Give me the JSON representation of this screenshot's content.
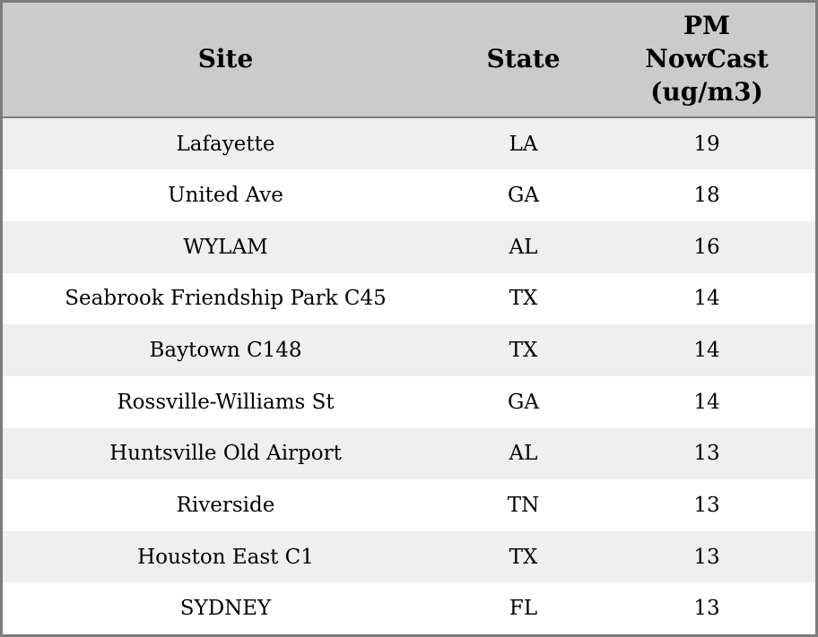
{
  "chart_data": {
    "type": "table",
    "columns": [
      "Site",
      "State",
      "PM NowCast (ug/m3)"
    ],
    "rows": [
      [
        "Lafayette",
        "LA",
        "19"
      ],
      [
        "United Ave",
        "GA",
        "18"
      ],
      [
        "WYLAM",
        "AL",
        "16"
      ],
      [
        "Seabrook Friendship Park C45",
        "TX",
        "14"
      ],
      [
        "Baytown C148",
        "TX",
        "14"
      ],
      [
        "Rossville-Williams St",
        "GA",
        "14"
      ],
      [
        "Huntsville Old Airport",
        "AL",
        "13"
      ],
      [
        "Riverside",
        "TN",
        "13"
      ],
      [
        "Houston East C1",
        "TX",
        "13"
      ],
      [
        "SYDNEY",
        "FL",
        "13"
      ]
    ]
  },
  "colors": {
    "header_bg": "#cbcbcb",
    "row_alt_bg": "#efefef",
    "row_bg": "#ffffff",
    "border": "#7c7c7c",
    "text": "#000000"
  }
}
